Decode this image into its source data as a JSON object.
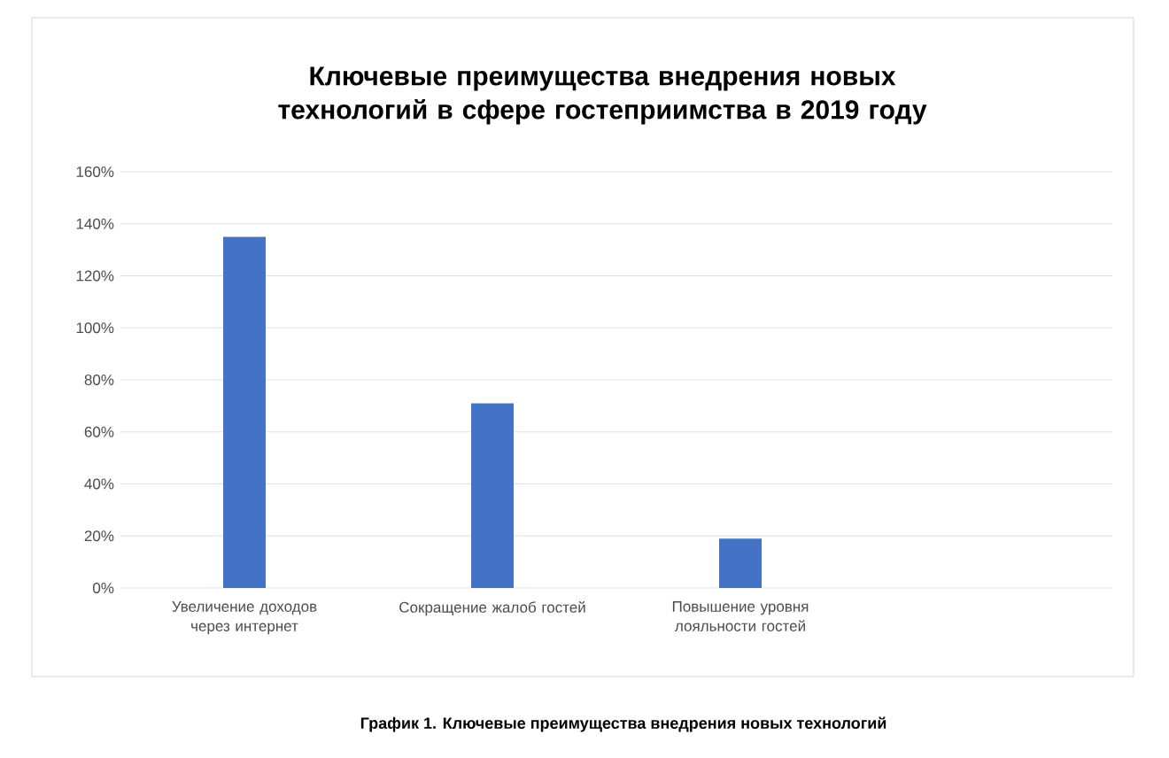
{
  "chart_data": {
    "type": "bar",
    "title": "Ключевые преимущества внедрения новых технологий в сфере гостеприимства в 2019 году",
    "categories": [
      "Увеличение доходов через интернет",
      "Сокращение жалоб гостей",
      "Повышение уровня лояльности гостей",
      null
    ],
    "values": [
      135,
      71,
      19,
      null
    ],
    "color": "#4472c4",
    "ylim": [
      0,
      160
    ],
    "yticks": [
      {
        "value": 0,
        "label": "0%"
      },
      {
        "value": 20,
        "label": "20%"
      },
      {
        "value": 40,
        "label": "40%"
      },
      {
        "value": 60,
        "label": "60%"
      },
      {
        "value": 80,
        "label": "80%"
      },
      {
        "value": 100,
        "label": "100%"
      },
      {
        "value": 120,
        "label": "120%"
      },
      {
        "value": 140,
        "label": "140%"
      },
      {
        "value": 160,
        "label": "160%"
      }
    ],
    "grid": "y",
    "annotations": [
      "График 1. Ключевые преимущества внедрения новых технологий"
    ]
  }
}
